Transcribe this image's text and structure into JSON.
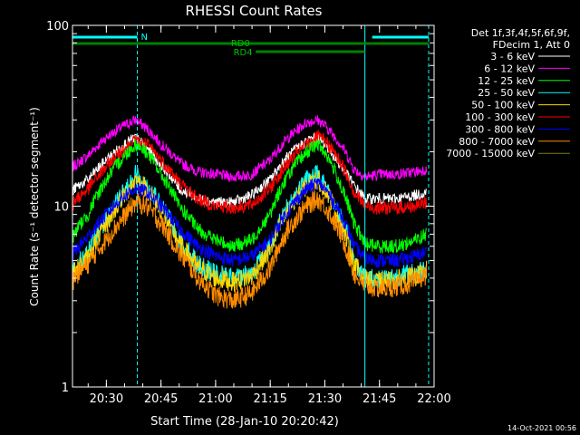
{
  "chart_data": {
    "type": "line",
    "title": "RHESSI Count Rates",
    "xlabel": "Start Time (28-Jan-10 20:20:42)",
    "ylabel": "Count Rate (s⁻¹ detector segment⁻¹)",
    "xlim": [
      "20:20:42",
      "22:00:00"
    ],
    "ylim": [
      1,
      100
    ],
    "yscale": "log",
    "x_ticks": [
      "20:30",
      "20:45",
      "21:00",
      "21:15",
      "21:30",
      "21:45",
      "22:00"
    ],
    "y_ticks": [
      "1",
      "10",
      "100"
    ],
    "legend_title": [
      "Det 1f,3f,4f,5f,6f,9f,",
      "FDecim 1, Att 0"
    ],
    "legend_position": "right",
    "series": [
      {
        "name": "3 - 6 keV",
        "color": "#ffffff",
        "times": [
          "20:20",
          "20:25",
          "20:30",
          "20:35",
          "20:38",
          "20:41",
          "20:45",
          "20:50",
          "20:55",
          "21:00",
          "21:05",
          "21:10",
          "21:15",
          "21:20",
          "21:25",
          "21:28",
          "21:30",
          "21:35",
          "21:38",
          "21:41",
          "21:45",
          "21:50",
          "21:55",
          "21:58"
        ],
        "values": [
          12,
          14,
          18,
          22,
          24,
          21,
          17,
          12.5,
          11,
          10.5,
          10.5,
          11.5,
          14,
          19,
          23,
          24,
          22,
          16,
          13,
          11,
          11,
          11,
          11.5,
          12
        ]
      },
      {
        "name": "6 - 12 keV",
        "color": "#ff00ff",
        "times": [
          "20:20",
          "20:25",
          "20:30",
          "20:35",
          "20:38",
          "20:41",
          "20:45",
          "20:50",
          "20:55",
          "21:00",
          "21:05",
          "21:10",
          "21:15",
          "21:20",
          "21:25",
          "21:28",
          "21:30",
          "21:35",
          "21:38",
          "21:41",
          "21:45",
          "21:50",
          "21:55",
          "21:58"
        ],
        "values": [
          16,
          19,
          24,
          28,
          30,
          27,
          22,
          17.5,
          15.5,
          15,
          14.5,
          15,
          18,
          24,
          29,
          30,
          28,
          21,
          16,
          14.5,
          15,
          15,
          15.5,
          16
        ]
      },
      {
        "name": "12 - 25 keV",
        "color": "#00ff00",
        "times": [
          "20:20",
          "20:25",
          "20:30",
          "20:35",
          "20:38",
          "20:41",
          "20:45",
          "20:50",
          "20:55",
          "21:00",
          "21:05",
          "21:10",
          "21:15",
          "21:20",
          "21:25",
          "21:28",
          "21:30",
          "21:35",
          "21:38",
          "21:41",
          "21:45",
          "21:50",
          "21:55",
          "21:58"
        ],
        "values": [
          6.5,
          9,
          14,
          19,
          22,
          20,
          15,
          10,
          7.5,
          6.5,
          6,
          6.5,
          9,
          15,
          20,
          22,
          20,
          12,
          8,
          6.2,
          6,
          6,
          6.5,
          7
        ]
      },
      {
        "name": "25 - 50 keV",
        "color": "#00ffff",
        "times": [
          "20:20",
          "20:25",
          "20:30",
          "20:35",
          "20:38",
          "20:41",
          "20:45",
          "20:50",
          "20:55",
          "21:00",
          "21:05",
          "21:10",
          "21:15",
          "21:20",
          "21:25",
          "21:28",
          "21:30",
          "21:35",
          "21:38",
          "21:41",
          "21:45",
          "21:50",
          "21:55",
          "21:58"
        ],
        "values": [
          4.2,
          5.5,
          8.5,
          12,
          15,
          13,
          10,
          6.5,
          4.8,
          4.2,
          4,
          4.3,
          6,
          10,
          14,
          15,
          13,
          8,
          5,
          4,
          4,
          4.1,
          4.3,
          4.6
        ]
      },
      {
        "name": "50 - 100 keV",
        "color": "#ffd700",
        "times": [
          "20:20",
          "20:25",
          "20:30",
          "20:35",
          "20:38",
          "20:41",
          "20:45",
          "20:50",
          "20:55",
          "21:00",
          "21:05",
          "21:10",
          "21:15",
          "21:20",
          "21:25",
          "21:28",
          "21:30",
          "21:35",
          "21:38",
          "21:41",
          "21:45",
          "21:50",
          "21:55",
          "21:58"
        ],
        "values": [
          4,
          5.2,
          8,
          11.5,
          14,
          12.5,
          9.5,
          6.2,
          4.6,
          4,
          3.8,
          4.1,
          5.7,
          9.5,
          13,
          14,
          12.5,
          7.5,
          4.8,
          3.9,
          3.8,
          3.9,
          4.1,
          4.4
        ]
      },
      {
        "name": "100 - 300 keV",
        "color": "#ff0000",
        "times": [
          "20:20",
          "20:25",
          "20:30",
          "20:35",
          "20:38",
          "20:41",
          "20:45",
          "20:50",
          "20:55",
          "21:00",
          "21:05",
          "21:10",
          "21:15",
          "21:20",
          "21:25",
          "21:28",
          "21:30",
          "21:35",
          "21:38",
          "21:41",
          "21:45",
          "21:50",
          "21:55",
          "21:58"
        ],
        "values": [
          10,
          12.5,
          16.5,
          21,
          23,
          22,
          18,
          13.5,
          11,
          10,
          9.8,
          10.2,
          12.5,
          17.5,
          22,
          24,
          23,
          16.5,
          12,
          10,
          9.8,
          9.8,
          10,
          10.5
        ]
      },
      {
        "name": "300 - 800 keV",
        "color": "#0000ff",
        "times": [
          "20:20",
          "20:25",
          "20:30",
          "20:35",
          "20:38",
          "20:41",
          "20:45",
          "20:50",
          "20:55",
          "21:00",
          "21:05",
          "21:10",
          "21:15",
          "21:20",
          "21:25",
          "21:28",
          "21:30",
          "21:35",
          "21:38",
          "21:41",
          "21:45",
          "21:50",
          "21:55",
          "21:58"
        ],
        "values": [
          5.2,
          6.8,
          9,
          11.5,
          12.5,
          12,
          10,
          7.5,
          6,
          5.3,
          5,
          5.3,
          6.5,
          9.5,
          12.5,
          13.5,
          12.5,
          8.5,
          6,
          5.1,
          5,
          5,
          5.3,
          5.6
        ]
      },
      {
        "name": "800 - 7000 keV",
        "color": "#ff8c00",
        "times": [
          "20:20",
          "20:25",
          "20:30",
          "20:35",
          "20:38",
          "20:41",
          "20:45",
          "20:50",
          "20:55",
          "21:00",
          "21:05",
          "21:10",
          "21:15",
          "21:20",
          "21:25",
          "21:28",
          "21:30",
          "21:35",
          "21:38",
          "21:41",
          "21:45",
          "21:50",
          "21:55",
          "21:58"
        ],
        "values": [
          3.8,
          4.8,
          6.5,
          8.8,
          10.5,
          10,
          8,
          5.5,
          4,
          3.2,
          3,
          3.3,
          4.5,
          7.5,
          10,
          11,
          10,
          6.5,
          4.2,
          3.6,
          3.5,
          3.6,
          3.8,
          4.2
        ]
      },
      {
        "name": "7000 - 15000 keV",
        "color": "#808000",
        "times": [],
        "values": []
      }
    ],
    "annotations": {
      "attenuator_marker": {
        "label": "N",
        "start": "20:20:42",
        "end": "20:38:30"
      },
      "attenuator_marker_2": {
        "label": "",
        "start": "21:43:00",
        "end": "21:58:30"
      },
      "decimation_bars": [
        {
          "label": "RD0",
          "start": "20:20:42",
          "end": "21:43:00"
        },
        {
          "label": "RD4",
          "start": "21:11:00",
          "end": "21:41:00"
        },
        {
          "label": "",
          "start": "21:43:00",
          "end": "21:58:30"
        }
      ],
      "vertical_lines": [
        {
          "time": "20:20:42",
          "style": "solid"
        },
        {
          "time": "20:38:30",
          "style": "dashed"
        },
        {
          "time": "21:41:00",
          "style": "solid"
        },
        {
          "time": "21:58:30",
          "style": "dashed"
        }
      ]
    }
  },
  "footer": {
    "timestamp": "14-Oct-2021 00:56"
  }
}
